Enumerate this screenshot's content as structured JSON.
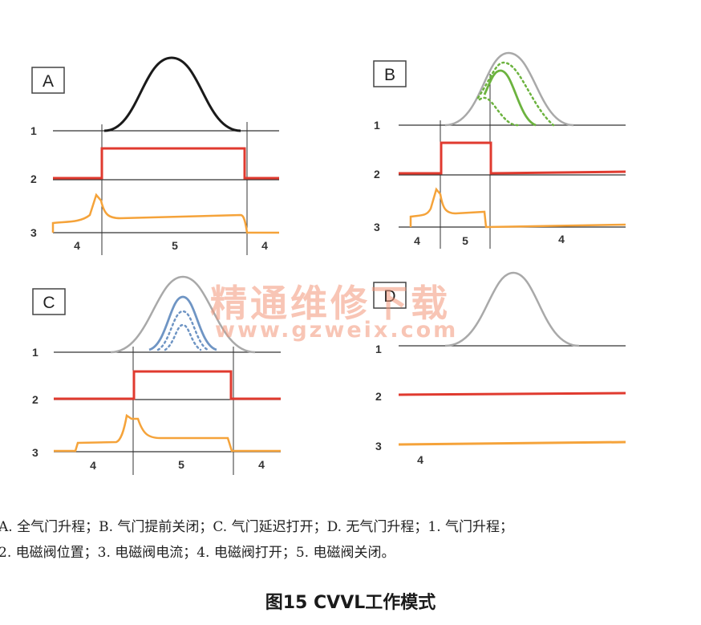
{
  "panels": [
    {
      "id": "A",
      "label": "A",
      "row_labels": [
        "1",
        "2",
        "3"
      ],
      "phase_labels": [
        "4",
        "5",
        "4"
      ]
    },
    {
      "id": "B",
      "label": "B",
      "row_labels": [
        "1",
        "2",
        "3"
      ],
      "phase_labels": [
        "4",
        "5",
        "4"
      ]
    },
    {
      "id": "C",
      "label": "C",
      "row_labels": [
        "1",
        "2",
        "3"
      ],
      "phase_labels": [
        "4",
        "5",
        "4"
      ]
    },
    {
      "id": "D",
      "label": "D",
      "row_labels": [
        "1",
        "2",
        "3"
      ],
      "phase_labels": [
        "4"
      ]
    }
  ],
  "caption": {
    "line1": "A. 全气门升程；B. 气门提前关闭；C. 气门延迟打开；D. 无气门升程；1. 气门升程；",
    "line2": "2. 电磁阀位置；3. 电磁阀电流；4. 电磁阀打开；5. 电磁阀关闭。"
  },
  "figure_title": "图15 CVVL工作模式",
  "watermark": {
    "text": "精通维修下载",
    "url": "www.gzweix.com"
  },
  "colors": {
    "lift_full": "#1a1a1a",
    "lift_gray": "#a9a9a9",
    "lift_green": "#6cb33f",
    "lift_blue": "#6f95c4",
    "valve_position": "#e03a2f",
    "solenoid_current": "#f5a33a",
    "axis": "#333333"
  }
}
